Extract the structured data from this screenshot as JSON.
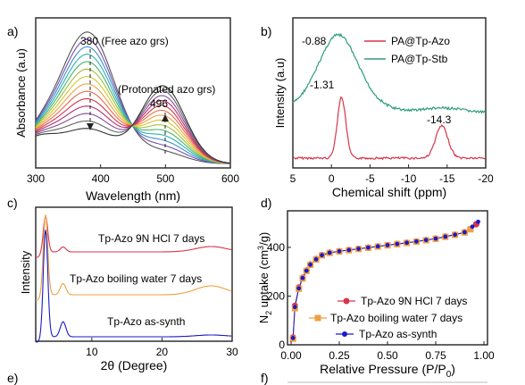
{
  "panels": {
    "a": {
      "label": "a)"
    },
    "b": {
      "label": "b)"
    },
    "c": {
      "label": "c)"
    },
    "d": {
      "label": "d)"
    },
    "e": {
      "label": "e)"
    },
    "f": {
      "label": "f)"
    }
  },
  "colors": {
    "red": "#d7354a",
    "green": "#2e9e78",
    "orange": "#f0a040",
    "blue": "#1a1acc",
    "black": "#222222"
  },
  "chart_data": [
    {
      "id": "a",
      "type": "line",
      "xlabel": "Wavelength (nm)",
      "ylabel": "Absorbance (a.u)",
      "xlim": [
        300,
        600
      ],
      "xticks": [
        "300",
        "400",
        "500",
        "600"
      ],
      "annotations": [
        "380 (Free azo grs)",
        "(Protonated azo grs)",
        "496"
      ],
      "series_count": 14,
      "series": [
        {
          "values_x": [
            300,
            330,
            350,
            380,
            410,
            440,
            470,
            496,
            520,
            550,
            580,
            600
          ],
          "values_y": [
            0.18,
            0.55,
            0.78,
            0.95,
            0.72,
            0.38,
            0.2,
            0.14,
            0.12,
            0.06,
            0.02,
            0.01
          ]
        },
        {
          "values_x": [
            300,
            330,
            350,
            380,
            410,
            440,
            470,
            496,
            520,
            550,
            580,
            600
          ],
          "values_y": [
            0.18,
            0.28,
            0.3,
            0.28,
            0.22,
            0.18,
            0.34,
            0.52,
            0.48,
            0.3,
            0.12,
            0.04
          ]
        }
      ]
    },
    {
      "id": "b",
      "type": "line",
      "xlabel": "Chemical shift (ppm)",
      "ylabel": "Intensity (a.u)",
      "xlim": [
        5,
        -20
      ],
      "xticks": [
        "5",
        "0",
        "-5",
        "-10",
        "-15",
        "-20"
      ],
      "legend": [
        "PA@Tp-Azo",
        "PA@Tp-Stb"
      ],
      "annotations": [
        "-0.88",
        "-1.31",
        "-14.3"
      ],
      "series": [
        {
          "name": "PA@Tp-Azo",
          "peaks_ppm": [
            -1.31,
            -14.3
          ]
        },
        {
          "name": "PA@Tp-Stb",
          "peaks_ppm": [
            -0.88
          ]
        }
      ]
    },
    {
      "id": "c",
      "type": "line",
      "xlabel": "2θ (Degree)",
      "ylabel": "Intensity",
      "xlim": [
        2,
        30
      ],
      "xticks": [
        "10",
        "20",
        "30"
      ],
      "series": [
        {
          "name": "Tp-Azo 9N HCl 7 days"
        },
        {
          "name": "Tp-Azo boiling water 7 days"
        },
        {
          "name": "Tp-Azo as-synth"
        }
      ]
    },
    {
      "id": "d",
      "type": "scatter",
      "xlabel": "Relative Pressure (P/P",
      "xlabel_sub": "0",
      "xlabel_end": ")",
      "ylabel": "N",
      "ylabel_sub": "2",
      "ylabel_rest": " uptake (cm",
      "ylabel_sup": "3",
      "ylabel_end": "/g)",
      "xlim": [
        0,
        1
      ],
      "ylim": [
        0,
        550
      ],
      "xticks": [
        "0.00",
        "0.25",
        "0.50",
        "0.75",
        "1.00"
      ],
      "yticks": [
        "0",
        "200",
        "400"
      ],
      "series": [
        {
          "name": "Tp-Azo 9N HCl 7 days",
          "x": [
            0.01,
            0.02,
            0.04,
            0.06,
            0.08,
            0.1,
            0.13,
            0.16,
            0.2,
            0.25,
            0.3,
            0.35,
            0.4,
            0.45,
            0.5,
            0.55,
            0.6,
            0.65,
            0.7,
            0.75,
            0.8,
            0.85,
            0.9,
            0.93,
            0.96
          ],
          "y": [
            30,
            160,
            235,
            275,
            305,
            330,
            352,
            368,
            378,
            384,
            389,
            394,
            399,
            404,
            409,
            414,
            419,
            424,
            430,
            436,
            444,
            452,
            462,
            475,
            495
          ]
        },
        {
          "name": "Tp-Azo boiling water 7 days",
          "x": [
            0.01,
            0.02,
            0.04,
            0.06,
            0.08,
            0.1,
            0.13,
            0.16,
            0.2,
            0.25,
            0.3,
            0.35,
            0.4,
            0.45,
            0.5,
            0.55,
            0.6,
            0.65,
            0.7,
            0.75,
            0.8,
            0.85,
            0.9,
            0.93
          ],
          "y": [
            25,
            150,
            230,
            272,
            303,
            328,
            350,
            367,
            377,
            383,
            388,
            393,
            398,
            403,
            408,
            413,
            418,
            423,
            429,
            435,
            443,
            451,
            461,
            474
          ]
        },
        {
          "name": "Tp-Azo as-synth",
          "x": [
            0.01,
            0.02,
            0.04,
            0.06,
            0.08,
            0.1,
            0.13,
            0.16,
            0.2,
            0.25,
            0.3,
            0.35,
            0.4,
            0.45,
            0.5,
            0.55,
            0.6,
            0.65,
            0.7,
            0.75,
            0.8,
            0.85,
            0.9,
            0.94,
            0.97
          ],
          "y": [
            28,
            155,
            232,
            274,
            304,
            329,
            351,
            368,
            378,
            384,
            389,
            394,
            399,
            404,
            409,
            414,
            419,
            424,
            430,
            436,
            444,
            452,
            462,
            485,
            505
          ]
        }
      ]
    }
  ]
}
